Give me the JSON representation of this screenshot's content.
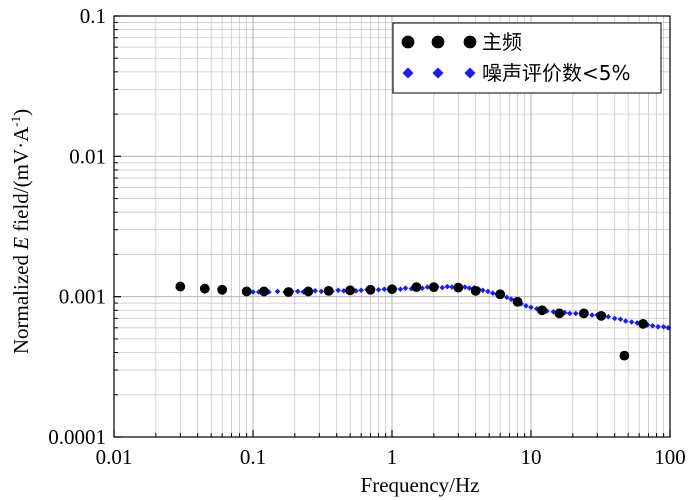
{
  "chart_data": {
    "type": "scatter",
    "title": "",
    "xlabel": "Frequency/Hz",
    "ylabel": {
      "prefix": "Normalized ",
      "italic": "E",
      "middle": " field/(mV·A",
      "superscript": "-1",
      "suffix": ")"
    },
    "x_scale": "log",
    "y_scale": "log",
    "xlim": [
      0.01,
      100
    ],
    "ylim": [
      0.0001,
      0.1
    ],
    "x_ticks": [
      {
        "value": 0.01,
        "label": "0.01"
      },
      {
        "value": 0.1,
        "label": "0.1"
      },
      {
        "value": 1,
        "label": "1"
      },
      {
        "value": 10,
        "label": "10"
      },
      {
        "value": 100,
        "label": "100"
      }
    ],
    "y_ticks": [
      {
        "value": 0.0001,
        "label": "0.0001"
      },
      {
        "value": 0.001,
        "label": "0.001"
      },
      {
        "value": 0.01,
        "label": "0.01"
      },
      {
        "value": 0.1,
        "label": "0.1"
      }
    ],
    "grid": true,
    "legend_position": "top-right",
    "series": [
      {
        "name": "主频",
        "marker": "circle",
        "color": "#000000",
        "points": [
          [
            0.03,
            0.00118
          ],
          [
            0.045,
            0.00114
          ],
          [
            0.06,
            0.00112
          ],
          [
            0.09,
            0.00109
          ],
          [
            0.12,
            0.00109
          ],
          [
            0.18,
            0.00108
          ],
          [
            0.25,
            0.00109
          ],
          [
            0.35,
            0.0011
          ],
          [
            0.5,
            0.00111
          ],
          [
            0.7,
            0.00112
          ],
          [
            1.0,
            0.00113
          ],
          [
            1.5,
            0.00117
          ],
          [
            2.0,
            0.00117
          ],
          [
            3.0,
            0.00116
          ],
          [
            4.0,
            0.0011
          ],
          [
            6.0,
            0.00104
          ],
          [
            8.0,
            0.00092
          ],
          [
            12.0,
            0.0008
          ],
          [
            16.0,
            0.00076
          ],
          [
            24.0,
            0.00076
          ],
          [
            32.0,
            0.00073
          ],
          [
            47.0,
            0.00038
          ],
          [
            64.0,
            0.00064
          ]
        ]
      },
      {
        "name": "噪声评价数<5%",
        "marker": "diamond",
        "color": "#1a1aff",
        "points": [
          [
            0.1,
            0.00108
          ],
          [
            0.11,
            0.00108
          ],
          [
            0.12,
            0.00109
          ],
          [
            0.13,
            0.00108
          ],
          [
            0.15,
            0.00109
          ],
          [
            0.17,
            0.00108
          ],
          [
            0.19,
            0.00109
          ],
          [
            0.21,
            0.00109
          ],
          [
            0.23,
            0.00108
          ],
          [
            0.25,
            0.00109
          ],
          [
            0.28,
            0.0011
          ],
          [
            0.31,
            0.00109
          ],
          [
            0.34,
            0.0011
          ],
          [
            0.37,
            0.00109
          ],
          [
            0.41,
            0.00111
          ],
          [
            0.45,
            0.0011
          ],
          [
            0.5,
            0.00111
          ],
          [
            0.55,
            0.0011
          ],
          [
            0.6,
            0.00111
          ],
          [
            0.66,
            0.00112
          ],
          [
            0.72,
            0.00111
          ],
          [
            0.8,
            0.00112
          ],
          [
            0.88,
            0.00113
          ],
          [
            0.96,
            0.00112
          ],
          [
            1.05,
            0.00114
          ],
          [
            1.15,
            0.00113
          ],
          [
            1.25,
            0.00115
          ],
          [
            1.38,
            0.00114
          ],
          [
            1.5,
            0.00116
          ],
          [
            1.65,
            0.00115
          ],
          [
            1.8,
            0.00117
          ],
          [
            1.95,
            0.00116
          ],
          [
            2.1,
            0.00118
          ],
          [
            2.3,
            0.00116
          ],
          [
            2.5,
            0.00118
          ],
          [
            2.7,
            0.00117
          ],
          [
            2.9,
            0.00118
          ],
          [
            3.1,
            0.00116
          ],
          [
            3.35,
            0.00117
          ],
          [
            3.6,
            0.00115
          ],
          [
            3.9,
            0.00116
          ],
          [
            4.2,
            0.00113
          ],
          [
            4.5,
            0.00111
          ],
          [
            4.9,
            0.00109
          ],
          [
            5.3,
            0.00106
          ],
          [
            5.7,
            0.00104
          ],
          [
            6.2,
            0.00102
          ],
          [
            6.7,
            0.00099
          ],
          [
            7.2,
            0.00096
          ],
          [
            7.8,
            0.00093
          ],
          [
            8.5,
            0.00089
          ],
          [
            9.2,
            0.00086
          ],
          [
            10,
            0.00084
          ],
          [
            11,
            0.00082
          ],
          [
            12,
            0.0008
          ],
          [
            13,
            0.00079
          ],
          [
            14.5,
            0.00078
          ],
          [
            16,
            0.00077
          ],
          [
            17.5,
            0.00077
          ],
          [
            19,
            0.00076
          ],
          [
            21,
            0.00076
          ],
          [
            23,
            0.00076
          ],
          [
            25,
            0.00075
          ],
          [
            27.5,
            0.00074
          ],
          [
            30,
            0.00074
          ],
          [
            33,
            0.00073
          ],
          [
            36,
            0.00072
          ],
          [
            40,
            0.0007
          ],
          [
            44,
            0.00069
          ],
          [
            48,
            0.00067
          ],
          [
            53,
            0.00066
          ],
          [
            58,
            0.00065
          ],
          [
            63,
            0.00064
          ],
          [
            69,
            0.00063
          ],
          [
            75,
            0.00062
          ],
          [
            82,
            0.00061
          ],
          [
            90,
            0.00061
          ],
          [
            97,
            0.0006
          ]
        ]
      }
    ]
  }
}
